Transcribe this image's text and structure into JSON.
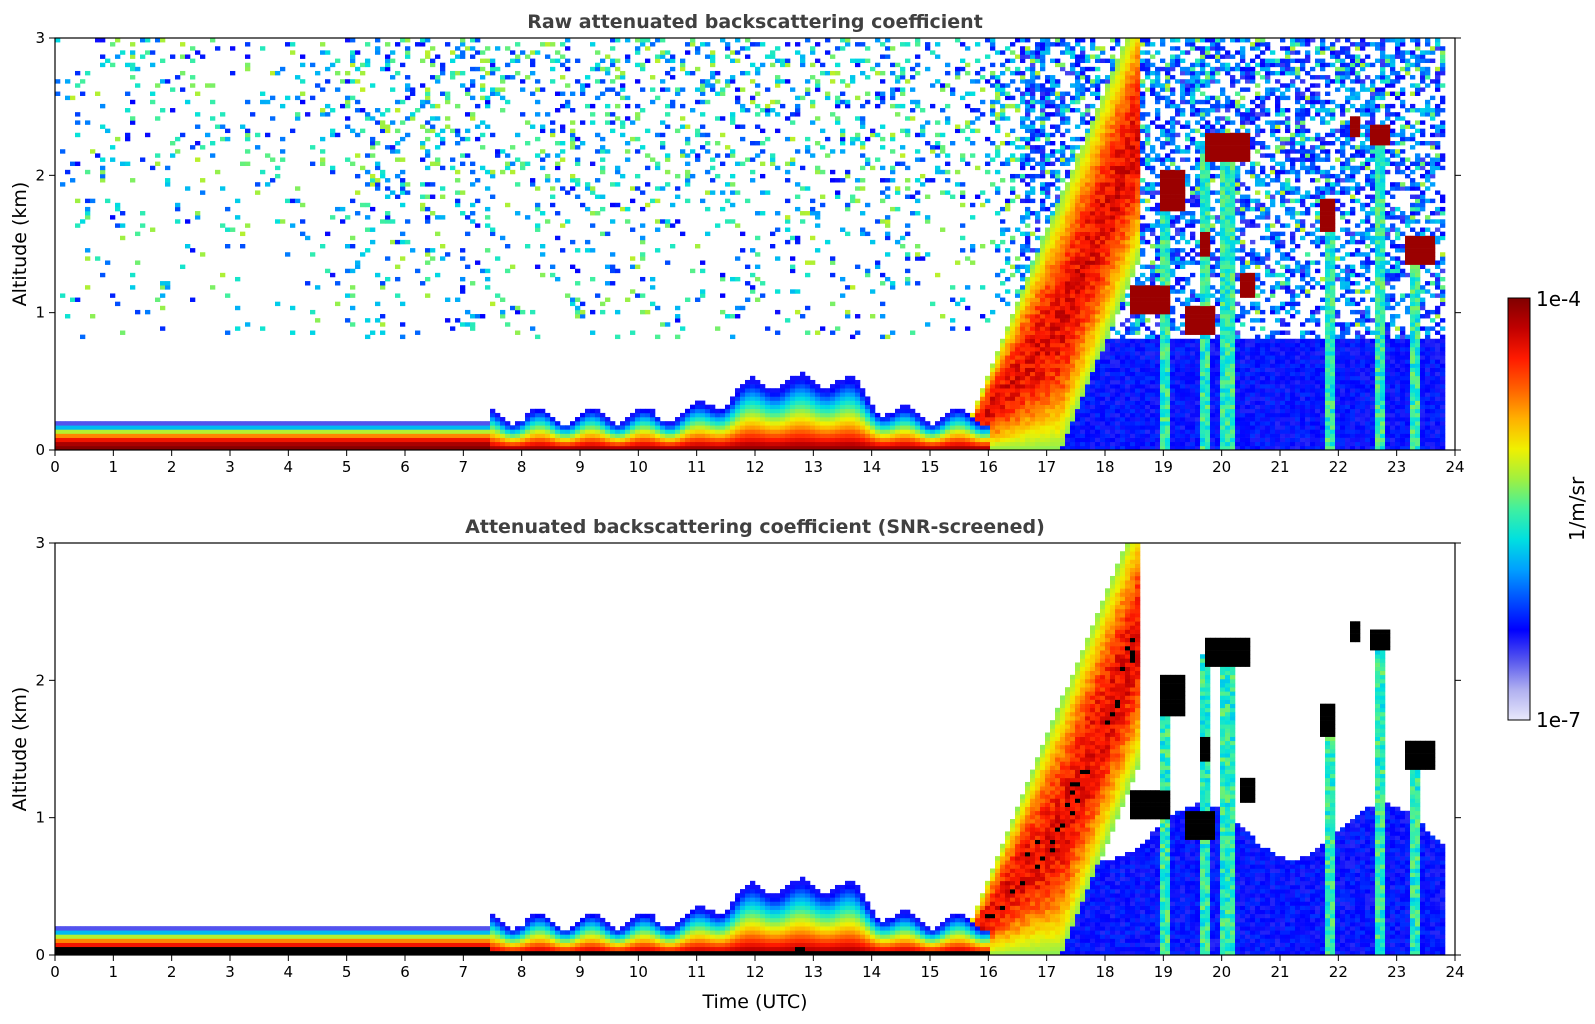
{
  "chart_data": [
    {
      "type": "heatmap",
      "title": "Raw attenuated backscattering coefficient",
      "xlabel": "",
      "ylabel": "Altitude (km)",
      "xlim": [
        0,
        24
      ],
      "ylim": [
        0,
        3
      ],
      "xticks": [
        "0",
        "1",
        "2",
        "3",
        "4",
        "5",
        "6",
        "7",
        "8",
        "9",
        "10",
        "11",
        "12",
        "13",
        "14",
        "15",
        "16",
        "17",
        "18",
        "19",
        "20",
        "21",
        "22",
        "23",
        "24"
      ],
      "yticks": [
        "0",
        "1",
        "2",
        "3"
      ],
      "screened": false,
      "features": [
        {
          "kind": "boundary_layer",
          "t_start": 0,
          "t_end": 7.5,
          "top_km": 0.2
        },
        {
          "kind": "aerosol_layer",
          "t_start": 7.5,
          "t_end": 16,
          "top_km": 0.55
        },
        {
          "kind": "rising_plume",
          "t_start": 15.8,
          "t_end": 18.5,
          "top_km": 3.0
        },
        {
          "kind": "clouds",
          "times": [
            18.7,
            19.1,
            19.5,
            19.7,
            20.1,
            20.4,
            21.8,
            22.3,
            22.7,
            23.3
          ],
          "alt_km": [
            1.1,
            1.9,
            1.0,
            1.5,
            2.2,
            1.2,
            1.7,
            2.3,
            2.3,
            1.45
          ]
        }
      ]
    },
    {
      "type": "heatmap",
      "title": "Attenuated backscattering coefficient (SNR-screened)",
      "xlabel": "Time (UTC)",
      "ylabel": "Altitude (km)",
      "xlim": [
        0,
        24
      ],
      "ylim": [
        0,
        3
      ],
      "xticks": [
        "0",
        "1",
        "2",
        "3",
        "4",
        "5",
        "6",
        "7",
        "8",
        "9",
        "10",
        "11",
        "12",
        "13",
        "14",
        "15",
        "16",
        "17",
        "18",
        "19",
        "20",
        "21",
        "22",
        "23",
        "24"
      ],
      "yticks": [
        "0",
        "1",
        "2",
        "3"
      ],
      "screened": true,
      "features": [
        {
          "kind": "boundary_layer",
          "t_start": 0,
          "t_end": 7.5,
          "top_km": 0.2
        },
        {
          "kind": "aerosol_layer",
          "t_start": 7.5,
          "t_end": 16,
          "top_km": 0.65
        },
        {
          "kind": "rising_plume",
          "t_start": 15.8,
          "t_end": 18.5,
          "top_km": 3.0
        },
        {
          "kind": "clouds",
          "times": [
            18.7,
            19.1,
            19.5,
            19.7,
            20.1,
            20.4,
            21.8,
            22.3,
            22.7,
            23.3
          ],
          "alt_km": [
            1.1,
            1.9,
            1.0,
            1.5,
            2.2,
            1.2,
            1.7,
            2.3,
            2.3,
            1.45
          ]
        }
      ]
    }
  ],
  "colorbar": {
    "label": "1/m/sr",
    "max_label": "1e-4",
    "min_label": "1e-7",
    "colors": [
      "#e8e8fb",
      "#b0b0f0",
      "#5555ee",
      "#0000ff",
      "#0050ff",
      "#00a0ff",
      "#00e0e0",
      "#40f0a0",
      "#a0f040",
      "#f0f000",
      "#ffb000",
      "#ff6000",
      "#ff1a00",
      "#c00000",
      "#800000"
    ]
  }
}
